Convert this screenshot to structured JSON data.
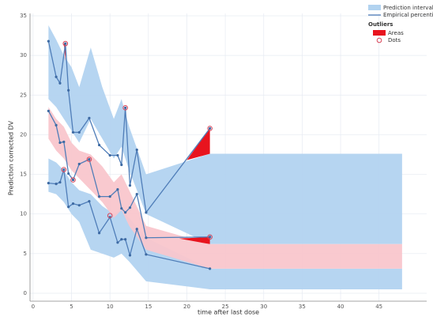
{
  "chart_data": {
    "type": "vpc",
    "x_label": "time after last dose",
    "y_label": "Prediction corrected DV",
    "xlim": [
      -0.4,
      51.2
    ],
    "ylim": [
      -1,
      35.3
    ],
    "xticks": [
      0,
      5,
      10,
      15,
      20,
      25,
      30,
      35,
      40,
      45
    ],
    "yticks": [
      0,
      5,
      10,
      15,
      20,
      25,
      30,
      35
    ],
    "grid": true,
    "legend": {
      "interval": "Prediction interval",
      "percentiles": "Empirical percentiles",
      "outliers": "Outliers",
      "areas": "Areas",
      "dots": "Dots"
    },
    "interval_color": "#b2d3f0",
    "line_color": "#4f7db8",
    "outlier_color": "#e8141e",
    "dot_color": "#d94458",
    "bands": [
      {
        "color": "#b2d3f0",
        "x": [
          2,
          3,
          4,
          5,
          6,
          7.5,
          9,
          10.5,
          11.5,
          12.5,
          14.7,
          23,
          48
        ],
        "upper": [
          33.8,
          32,
          30,
          28.5,
          26,
          31,
          26,
          22,
          24.5,
          21,
          15,
          17.6,
          17.6
        ],
        "lower": [
          24.5,
          23.5,
          22,
          20.5,
          19,
          22,
          19.5,
          17,
          18.5,
          15.5,
          10,
          6.2,
          6.2
        ]
      },
      {
        "color": "#b2d3f0",
        "x": [
          2,
          3,
          4,
          5,
          6,
          7.5,
          9,
          10.5,
          11.5,
          12.5,
          14.7,
          23,
          48
        ],
        "upper": [
          17,
          16.5,
          15.5,
          14,
          13,
          12.5,
          11,
          10,
          10.5,
          9.5,
          7,
          3.1,
          3.1
        ],
        "lower": [
          12.8,
          12.5,
          11.5,
          10,
          9,
          5.5,
          5,
          4.5,
          5,
          4,
          1.5,
          0.5,
          0.5
        ]
      },
      {
        "color": "#f9c6cc",
        "x": [
          2,
          3,
          4,
          5,
          6,
          7.5,
          9,
          10.5,
          11.5,
          12.5,
          14.7,
          23,
          48
        ],
        "upper": [
          23.5,
          22,
          21,
          19,
          18,
          17.5,
          16,
          14,
          15,
          13,
          8.5,
          6.2,
          6.2
        ],
        "lower": [
          19.5,
          18,
          17,
          15.5,
          14.5,
          13,
          11.5,
          9.5,
          10.5,
          8.5,
          5.5,
          3.1,
          3.1
        ]
      }
    ],
    "series": [
      {
        "x": [
          2,
          3,
          3.5,
          4.2,
          4.6,
          5.2,
          6,
          7.3,
          8.6,
          10,
          11,
          11.5,
          12,
          12.6,
          13.5,
          14.7,
          23
        ],
        "values": [
          31.8,
          27.3,
          26.5,
          31.5,
          25.6,
          20.3,
          20.3,
          22.1,
          18.7,
          17.4,
          17.4,
          16.2,
          23.4,
          13.6,
          18.1,
          10.2,
          20.8
        ]
      },
      {
        "x": [
          2,
          3,
          3.5,
          4,
          4.6,
          5.2,
          6,
          7.3,
          8.6,
          10,
          11,
          11.5,
          12,
          12.6,
          13.5,
          14.7,
          23
        ],
        "values": [
          23,
          21.2,
          19,
          19.1,
          15.1,
          14.3,
          16.3,
          16.9,
          12.2,
          12.2,
          13.1,
          10.7,
          10.2,
          10.8,
          12.5,
          7,
          7.1
        ]
      },
      {
        "x": [
          2,
          3,
          3.5,
          4,
          4.6,
          5.2,
          6,
          7.3,
          8.6,
          10,
          11,
          11.5,
          12,
          12.6,
          13.5,
          14.7,
          23
        ],
        "values": [
          13.9,
          13.8,
          14,
          15.6,
          10.9,
          11.3,
          11.1,
          11.6,
          7.6,
          9.6,
          6.4,
          6.8,
          6.8,
          4.8,
          8.1,
          4.9,
          3.1
        ]
      }
    ],
    "outlier_areas": [
      {
        "x": [
          4,
          4.2,
          4.2
        ],
        "y": [
          31.5,
          31.5,
          29.3
        ]
      },
      {
        "x": [
          20,
          23,
          23
        ],
        "y": [
          16.8,
          20.8,
          17.6
        ]
      },
      {
        "x": [
          19,
          23,
          23
        ],
        "y": [
          6.9,
          7.1,
          6.2
        ]
      }
    ],
    "outlier_dots": {
      "x": [
        4.2,
        12,
        23,
        4,
        5.2,
        7.3,
        10,
        23
      ],
      "y": [
        31.5,
        23.4,
        20.8,
        15.6,
        14.3,
        16.9,
        9.8,
        7.1
      ]
    }
  }
}
